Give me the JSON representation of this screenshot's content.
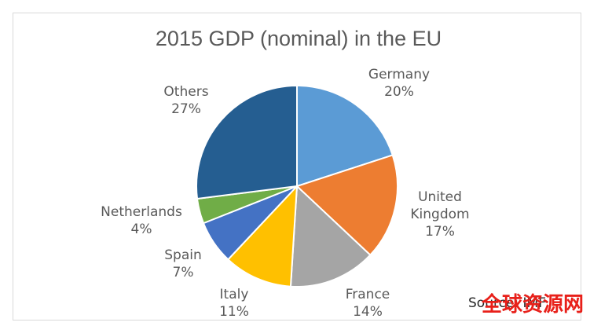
{
  "chart_data": {
    "type": "pie",
    "title": "2015 GDP (nominal) in the EU",
    "categories": [
      "Germany",
      "United Kingdom",
      "France",
      "Italy",
      "Spain",
      "Netherlands",
      "Others"
    ],
    "values": [
      20,
      17,
      14,
      11,
      7,
      4,
      27
    ],
    "value_labels": [
      "20%",
      "17%",
      "14%",
      "11%",
      "7%",
      "4%",
      "27%"
    ],
    "colors": [
      "#5b9bd5",
      "#ed7d31",
      "#a5a5a5",
      "#ffc000",
      "#4472c4",
      "#70ad47",
      "#255e91"
    ],
    "start_angle": "12 o'clock",
    "direction": "clockwise",
    "legend": "none",
    "source": "Source: IMF"
  },
  "watermark": "全球资源网"
}
